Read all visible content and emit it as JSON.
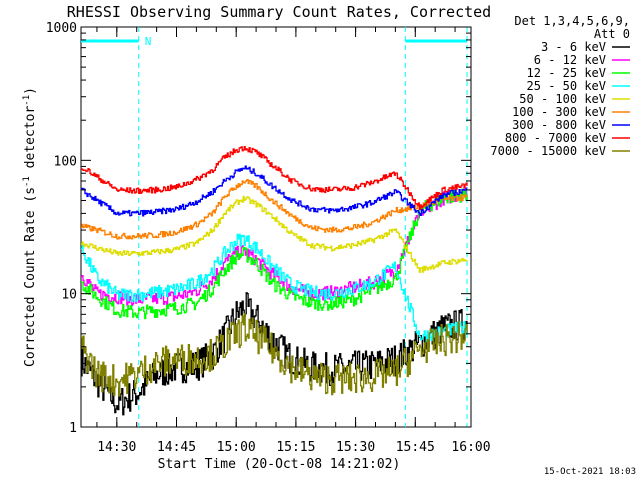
{
  "chart_data": {
    "type": "line",
    "title": "RHESSI Observing Summary Count Rates, Corrected",
    "xlabel": "Start Time (20-Oct-08 14:21:02)",
    "ylabel_main": "Corrected Count Rate (s",
    "ylabel_sup1": "-1",
    "ylabel_mid": " detector",
    "ylabel_sup2": "-1",
    "ylabel_end": ")",
    "yscale": "log",
    "ylim": [
      1,
      1000
    ],
    "xlim_minutes": [
      0,
      98
    ],
    "yticks": [
      {
        "value": 1,
        "label": "1"
      },
      {
        "value": 10,
        "label": "10"
      },
      {
        "value": 100,
        "label": "100"
      },
      {
        "value": 1000,
        "label": "1000"
      }
    ],
    "xticks": [
      {
        "value": 9,
        "label": "14:30"
      },
      {
        "value": 24,
        "label": "14:45"
      },
      {
        "value": 39,
        "label": "15:00"
      },
      {
        "value": 54,
        "label": "15:15"
      },
      {
        "value": 69,
        "label": "15:30"
      },
      {
        "value": 84,
        "label": "15:45"
      },
      {
        "value": 99,
        "label": "16:00"
      }
    ],
    "legend_header": [
      "Det 1,3,4,5,6,9,",
      "Att 0"
    ],
    "legend_placement": "right",
    "night_flag_label": "N",
    "night_intervals": [
      [
        0,
        14.5
      ],
      [
        81.5,
        97
      ]
    ],
    "corner_timestamp": "15-Oct-2021 18:03",
    "series": [
      {
        "name": "3 - 6 keV",
        "color": "#000000",
        "values": [
          3.2,
          2.2,
          1.5,
          1.8,
          2.5,
          2.8,
          2.9,
          3.5,
          4.8,
          7.0,
          8.0,
          6.5,
          4.5,
          3.2,
          2.8,
          2.7,
          2.8,
          2.9,
          3.2,
          4.2,
          5.5,
          6.0
        ]
      },
      {
        "name": "6 - 12 keV",
        "color": "#ff00ff",
        "values": [
          14,
          10,
          9.5,
          9.0,
          9.2,
          9.5,
          10.5,
          13,
          17,
          20,
          21,
          18,
          14,
          11,
          10,
          10.2,
          11,
          12,
          15,
          40,
          52,
          57
        ]
      },
      {
        "name": "12 - 25 keV",
        "color": "#00ff00",
        "values": [
          12,
          9.5,
          7.5,
          7.2,
          7.5,
          7.8,
          8.5,
          11,
          15,
          19,
          20,
          17,
          12,
          9.5,
          8.5,
          8.4,
          9,
          10.5,
          13,
          42,
          52,
          56
        ]
      },
      {
        "name": "25 - 50 keV",
        "color": "#00ffff",
        "values": [
          22,
          13,
          9.8,
          9.8,
          10.2,
          10.8,
          12,
          15,
          20,
          25,
          26,
          22,
          16,
          11.5,
          10.2,
          10,
          10.8,
          12,
          16,
          4.8,
          5.2,
          5.6
        ]
      },
      {
        "name": "50 - 100 keV",
        "color": "#dddd00",
        "values": [
          24,
          22,
          20,
          20,
          20.5,
          21.5,
          24,
          30,
          40,
          48,
          52,
          47,
          38,
          28,
          23,
          22,
          23,
          25,
          30,
          15,
          17,
          18
        ]
      },
      {
        "name": "100 - 300 keV",
        "color": "#ff8000",
        "values": [
          32,
          30,
          27,
          27,
          27.5,
          29,
          33,
          40,
          53,
          64,
          70,
          64,
          50,
          38,
          31,
          30,
          31,
          34,
          42,
          45,
          51,
          53
        ]
      },
      {
        "name": "300 - 800 keV",
        "color": "#0000ff",
        "values": [
          60,
          50,
          40,
          40,
          41,
          43,
          49,
          58,
          70,
          82,
          88,
          80,
          64,
          50,
          43,
          42,
          44,
          48,
          58,
          40,
          55,
          60
        ]
      },
      {
        "name": "800 - 7000 keV",
        "color": "#ff0000",
        "values": [
          90,
          75,
          60,
          59,
          60,
          63,
          72,
          85,
          105,
          120,
          125,
          115,
          92,
          70,
          61,
          60,
          62,
          68,
          80,
          45,
          60,
          65
        ]
      },
      {
        "name": "7000 - 15000 keV",
        "color": "#808000",
        "values": [
          4.0,
          2.5,
          2.2,
          2.5,
          3.0,
          3.2,
          3.3,
          3.5,
          4.2,
          5.0,
          5.5,
          4.8,
          3.8,
          2.8,
          2.4,
          2.3,
          2.3,
          2.4,
          2.6,
          3.8,
          4.5,
          4.8
        ]
      }
    ],
    "x": [
      0,
      4,
      9,
      14,
      19,
      24,
      29,
      33,
      36,
      39,
      41,
      44,
      48,
      53,
      58,
      63,
      68,
      73,
      79,
      85,
      91,
      97
    ]
  }
}
